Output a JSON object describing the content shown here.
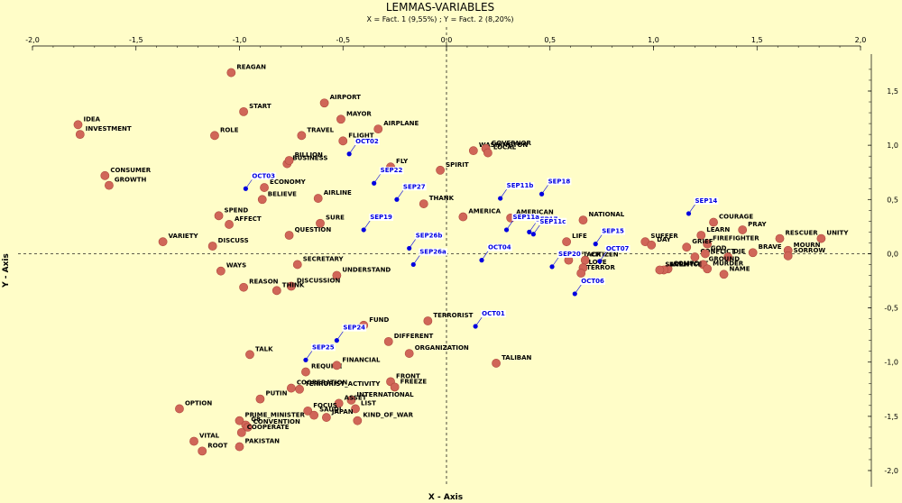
{
  "chart_data": {
    "type": "scatter",
    "title": "LEMMAS-VARIABLES",
    "subtitle": "X = Fact. 1 (9,55%) ; Y = Fact. 2 (8,20%)",
    "xlabel": "X - Axis",
    "ylabel": "Y - Axis",
    "xlim": [
      -2.0,
      2.0
    ],
    "ylim": [
      -2.0,
      1.75
    ],
    "x_ticks": [
      "-2,0",
      "-1,5",
      "-1,0",
      "-0,5",
      "0,0",
      "0,5",
      "1,0",
      "1,5",
      "2,0"
    ],
    "y_ticks": [
      "1,5",
      "1,0",
      "0,5",
      "0,0",
      "-0,5",
      "-1,0",
      "-1,5",
      "-2,0"
    ],
    "colors": {
      "lemma": "#d06658",
      "variable": "#0000e0",
      "background": "#fffdc8"
    },
    "series": [
      {
        "name": "lemmas",
        "points": [
          {
            "label": "REAGAN",
            "x": -1.04,
            "y": 1.67
          },
          {
            "label": "START",
            "x": -0.98,
            "y": 1.31
          },
          {
            "label": "AIRPORT",
            "x": -0.59,
            "y": 1.39
          },
          {
            "label": "MAYOR",
            "x": -0.51,
            "y": 1.24
          },
          {
            "label": "AIRPLANE",
            "x": -0.33,
            "y": 1.15
          },
          {
            "label": "IDEA",
            "x": -1.78,
            "y": 1.19
          },
          {
            "label": "INVESTMENT",
            "x": -1.77,
            "y": 1.1
          },
          {
            "label": "ROLE",
            "x": -1.12,
            "y": 1.09
          },
          {
            "label": "TRAVEL",
            "x": -0.7,
            "y": 1.09
          },
          {
            "label": "FLIGHT",
            "x": -0.5,
            "y": 1.04
          },
          {
            "label": "WASHINGTON",
            "x": 0.13,
            "y": 0.95
          },
          {
            "label": "GOVERNOR",
            "x": 0.19,
            "y": 0.97
          },
          {
            "label": "LOCAL",
            "x": 0.2,
            "y": 0.93
          },
          {
            "label": "BUSINESS",
            "x": -0.77,
            "y": 0.83
          },
          {
            "label": "BILLION",
            "x": -0.76,
            "y": 0.86
          },
          {
            "label": "FLY",
            "x": -0.27,
            "y": 0.8
          },
          {
            "label": "SPIRIT",
            "x": -0.03,
            "y": 0.77
          },
          {
            "label": "CONSUMER",
            "x": -1.65,
            "y": 0.72
          },
          {
            "label": "GROWTH",
            "x": -1.63,
            "y": 0.63
          },
          {
            "label": "ECONOMY",
            "x": -0.88,
            "y": 0.61
          },
          {
            "label": "BELIEVE",
            "x": -0.89,
            "y": 0.5
          },
          {
            "label": "AIRLINE",
            "x": -0.62,
            "y": 0.51
          },
          {
            "label": "THANK",
            "x": -0.11,
            "y": 0.46
          },
          {
            "label": "SPEND",
            "x": -1.1,
            "y": 0.35
          },
          {
            "label": "AFFECT",
            "x": -1.05,
            "y": 0.27
          },
          {
            "label": "SURE",
            "x": -0.61,
            "y": 0.28
          },
          {
            "label": "QUESTION",
            "x": -0.76,
            "y": 0.17
          },
          {
            "label": "AMERICA",
            "x": 0.08,
            "y": 0.34
          },
          {
            "label": "AMERICAN",
            "x": 0.31,
            "y": 0.33
          },
          {
            "label": "NATIONAL",
            "x": 0.66,
            "y": 0.31
          },
          {
            "label": "VARIETY",
            "x": -1.37,
            "y": 0.11
          },
          {
            "label": "DISCUSS",
            "x": -1.13,
            "y": 0.07
          },
          {
            "label": "LIFE",
            "x": 0.58,
            "y": 0.11
          },
          {
            "label": "ATTACK",
            "x": 0.59,
            "y": -0.06
          },
          {
            "label": "CITIZEN",
            "x": 0.67,
            "y": -0.06
          },
          {
            "label": "LOVE",
            "x": 0.66,
            "y": -0.13
          },
          {
            "label": "TERROR",
            "x": 0.65,
            "y": -0.18
          },
          {
            "label": "SUFFER",
            "x": 0.96,
            "y": 0.11
          },
          {
            "label": "DAY",
            "x": 0.99,
            "y": 0.08
          },
          {
            "label": "COURAGE",
            "x": 1.29,
            "y": 0.29
          },
          {
            "label": "PRAY",
            "x": 1.43,
            "y": 0.22
          },
          {
            "label": "LEARN",
            "x": 1.23,
            "y": 0.17
          },
          {
            "label": "FIREFIGHTER",
            "x": 1.26,
            "y": 0.09
          },
          {
            "label": "GRIEF",
            "x": 1.16,
            "y": 0.06
          },
          {
            "label": "RESCUER",
            "x": 1.61,
            "y": 0.14
          },
          {
            "label": "UNITY",
            "x": 1.81,
            "y": 0.14
          },
          {
            "label": "MOURN",
            "x": 1.65,
            "y": 0.03
          },
          {
            "label": "BRAVE",
            "x": 1.48,
            "y": 0.01
          },
          {
            "label": "SORROW",
            "x": 1.65,
            "y": -0.02
          },
          {
            "label": "CONFLICT",
            "x": 1.2,
            "y": -0.03
          },
          {
            "label": "GOD",
            "x": 1.25,
            "y": 0.0
          },
          {
            "label": "DIE",
            "x": 1.36,
            "y": -0.03
          },
          {
            "label": "COMFORT",
            "x": 1.07,
            "y": -0.14
          },
          {
            "label": "GROUND",
            "x": 1.24,
            "y": -0.1
          },
          {
            "label": "ENEMY",
            "x": 1.05,
            "y": -0.15
          },
          {
            "label": "SACRIFICE",
            "x": 1.03,
            "y": -0.15
          },
          {
            "label": "MURDER",
            "x": 1.26,
            "y": -0.14
          },
          {
            "label": "NAME",
            "x": 1.34,
            "y": -0.19
          },
          {
            "label": "WAYS",
            "x": -1.09,
            "y": -0.16
          },
          {
            "label": "SECRETARY",
            "x": -0.72,
            "y": -0.1
          },
          {
            "label": "UNDERSTAND",
            "x": -0.53,
            "y": -0.2
          },
          {
            "label": "REASON",
            "x": -0.98,
            "y": -0.31
          },
          {
            "label": "DISCUSSION",
            "x": -0.75,
            "y": -0.3
          },
          {
            "label": "THINK",
            "x": -0.82,
            "y": -0.34
          },
          {
            "label": "TERRORIST",
            "x": -0.09,
            "y": -0.62
          },
          {
            "label": "FUND",
            "x": -0.4,
            "y": -0.66
          },
          {
            "label": "DIFFERENT",
            "x": -0.28,
            "y": -0.81
          },
          {
            "label": "ORGANIZATION",
            "x": -0.18,
            "y": -0.92
          },
          {
            "label": "TALIBAN",
            "x": 0.24,
            "y": -1.01
          },
          {
            "label": "TALK",
            "x": -0.95,
            "y": -0.93
          },
          {
            "label": "REQUIRE",
            "x": -0.68,
            "y": -1.09
          },
          {
            "label": "FINANCIAL",
            "x": -0.53,
            "y": -1.03
          },
          {
            "label": "TERRORIST_ACTIVITY",
            "x": -0.71,
            "y": -1.25
          },
          {
            "label": "COOPERATION",
            "x": -0.75,
            "y": -1.24
          },
          {
            "label": "FRONT",
            "x": -0.27,
            "y": -1.18
          },
          {
            "label": "FREEZE",
            "x": -0.25,
            "y": -1.23
          },
          {
            "label": "PUTIN",
            "x": -0.9,
            "y": -1.34
          },
          {
            "label": "INTERNATIONAL",
            "x": -0.46,
            "y": -1.35
          },
          {
            "label": "ASSET",
            "x": -0.52,
            "y": -1.38
          },
          {
            "label": "LIST",
            "x": -0.44,
            "y": -1.43
          },
          {
            "label": "FOCUS",
            "x": -0.67,
            "y": -1.45
          },
          {
            "label": "OPTION",
            "x": -1.29,
            "y": -1.43
          },
          {
            "label": "PRIME_MINISTER",
            "x": -1.0,
            "y": -1.54
          },
          {
            "label": "SAUDI",
            "x": -0.64,
            "y": -1.49
          },
          {
            "label": "JAPAN",
            "x": -0.58,
            "y": -1.51
          },
          {
            "label": "KIND_OF_WAR",
            "x": -0.43,
            "y": -1.54
          },
          {
            "label": "G8",
            "x": -0.97,
            "y": -1.58
          },
          {
            "label": "CONVENTION",
            "x": -0.96,
            "y": -1.6
          },
          {
            "label": "COOPERATE",
            "x": -0.99,
            "y": -1.65
          },
          {
            "label": "VITAL",
            "x": -1.22,
            "y": -1.73
          },
          {
            "label": "PAKISTAN",
            "x": -1.0,
            "y": -1.78
          },
          {
            "label": "ROOT",
            "x": -1.18,
            "y": -1.82
          }
        ]
      },
      {
        "name": "variables",
        "points": [
          {
            "label": "OCT02",
            "x": -0.47,
            "y": 0.92
          },
          {
            "label": "SEP22",
            "x": -0.35,
            "y": 0.65
          },
          {
            "label": "OCT03",
            "x": -0.97,
            "y": 0.6
          },
          {
            "label": "SEP27",
            "x": -0.24,
            "y": 0.5
          },
          {
            "label": "SEP11b",
            "x": 0.26,
            "y": 0.51
          },
          {
            "label": "SEP18",
            "x": 0.46,
            "y": 0.55
          },
          {
            "label": "SEP19",
            "x": -0.4,
            "y": 0.22
          },
          {
            "label": "SEP17",
            "x": 0.4,
            "y": 0.2
          },
          {
            "label": "SEP11a",
            "x": 0.29,
            "y": 0.22
          },
          {
            "label": "SEP11c",
            "x": 0.42,
            "y": 0.18
          },
          {
            "label": "SEP14",
            "x": 1.17,
            "y": 0.37
          },
          {
            "label": "SEP26b",
            "x": -0.18,
            "y": 0.05
          },
          {
            "label": "SEP26a",
            "x": -0.16,
            "y": -0.1
          },
          {
            "label": "OCT04",
            "x": 0.17,
            "y": -0.06
          },
          {
            "label": "SEP15",
            "x": 0.72,
            "y": 0.09
          },
          {
            "label": "OCT07",
            "x": 0.74,
            "y": -0.07
          },
          {
            "label": "SEP20",
            "x": 0.51,
            "y": -0.12
          },
          {
            "label": "OCT06",
            "x": 0.62,
            "y": -0.37
          },
          {
            "label": "OCT01",
            "x": 0.14,
            "y": -0.67
          },
          {
            "label": "SEP24",
            "x": -0.53,
            "y": -0.8
          },
          {
            "label": "SEP25",
            "x": -0.68,
            "y": -0.98
          }
        ]
      }
    ]
  }
}
